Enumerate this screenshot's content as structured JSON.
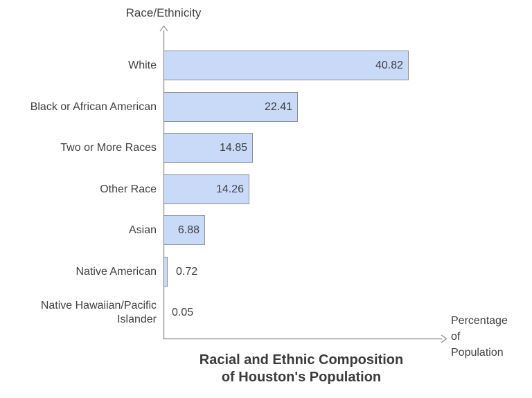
{
  "chart_data": {
    "type": "bar",
    "orientation": "horizontal",
    "title": "Racial and Ethnic Composition\nof Houston's Population",
    "ylabel": "Race/Ethnicity",
    "xlabel": "Percentage\nof\nPopulation",
    "categories": [
      "White",
      "Black or African American",
      "Two or More Races",
      "Other Race",
      "Asian",
      "Native American",
      "Native Hawaiian/Pacific Islander"
    ],
    "values": [
      40.82,
      22.41,
      14.85,
      14.26,
      6.88,
      0.72,
      0.05
    ],
    "value_labels": [
      "40.82",
      "22.41",
      "14.85",
      "14.26",
      "6.88",
      "0.72",
      "0.05"
    ],
    "xlim": [
      0,
      47
    ],
    "grid": false,
    "legend": false,
    "colors": {
      "bar_fill": "#c9daf8",
      "bar_border": "#8f8f8f",
      "axis": "#999999",
      "text": "#404040",
      "title_text": "#3b3b3b"
    }
  }
}
